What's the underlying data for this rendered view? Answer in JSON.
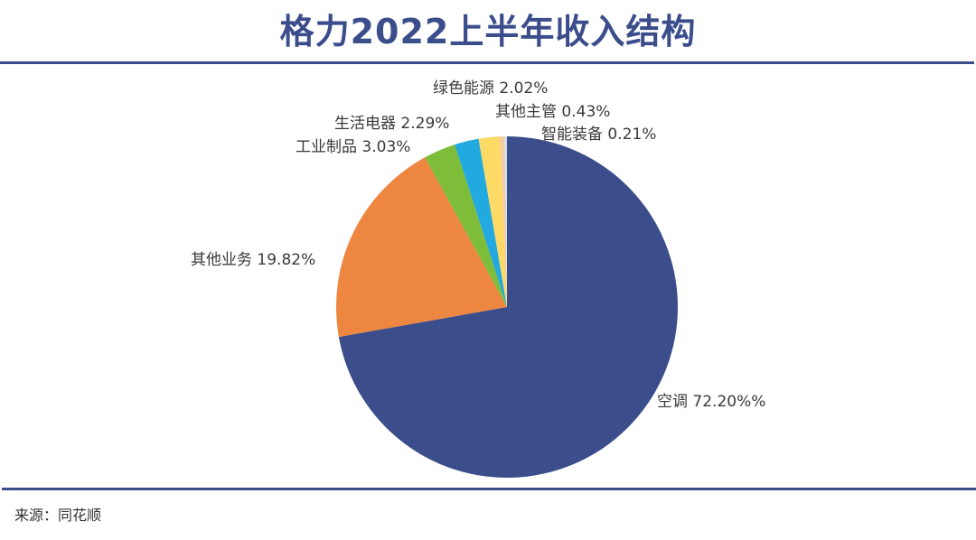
{
  "title": "格力2022上半年收入结构",
  "source": "来源：同花顺",
  "colors": {
    "title": "#3c4d8c",
    "rule": "#3c4d8c"
  },
  "chart_data": {
    "type": "pie",
    "title": "格力2022上半年收入结构",
    "start_angle": "12 o'clock, clockwise",
    "categories": [
      "空调",
      "其他业务",
      "工业制品",
      "生活电器",
      "绿色能源",
      "其他主管",
      "智能装备"
    ],
    "values": [
      72.2,
      19.82,
      3.03,
      2.29,
      2.02,
      0.43,
      0.21
    ],
    "labels": [
      "空调 72.20%%",
      "其他业务 19.82%",
      "工业制品 3.03%",
      "生活电器 2.29%",
      "绿色能源 2.02%",
      "其他主管 0.43%",
      "智能装备 0.21%"
    ],
    "colors": [
      "#3c4d8c",
      "#ed8640",
      "#7dbd3a",
      "#22a9e0",
      "#fdd966",
      "#f6cba8",
      "#c9e3f0"
    ],
    "unit": "%",
    "legend": "none (data labels outside slices)"
  },
  "labels_display": {
    "kongtiao": "空调 72.20%%",
    "qita_yewu": "其他业务 19.82%",
    "gongye": "工业制品 3.03%",
    "shenghuo": "生活电器 2.29%",
    "lvse": "绿色能源 2.02%",
    "qita_zhuguan": "其他主管 0.43%",
    "zhineng": "智能装备 0.21%"
  }
}
